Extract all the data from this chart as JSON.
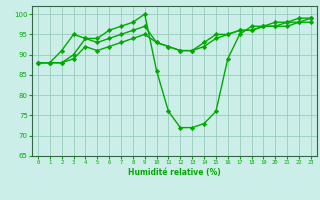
{
  "xlabel": "Humidité relative (%)",
  "background_color": "#cceee8",
  "grid_color": "#99ccbb",
  "line_color": "#00aa00",
  "marker": "D",
  "markersize": 2.2,
  "linewidth": 1.0,
  "xlim": [
    -0.5,
    23.5
  ],
  "ylim": [
    65,
    102
  ],
  "yticks": [
    65,
    70,
    75,
    80,
    85,
    90,
    95,
    100
  ],
  "xticks": [
    0,
    1,
    2,
    3,
    4,
    5,
    6,
    7,
    8,
    9,
    10,
    11,
    12,
    13,
    14,
    15,
    16,
    17,
    18,
    19,
    20,
    21,
    22,
    23
  ],
  "series": [
    [
      88,
      88,
      91,
      95,
      94,
      94,
      96,
      97,
      98,
      100,
      86,
      76,
      72,
      72,
      73,
      76,
      89,
      95,
      97,
      97,
      98,
      98,
      99,
      99
    ],
    [
      88,
      88,
      88,
      90,
      94,
      93,
      94,
      95,
      96,
      97,
      93,
      92,
      91,
      91,
      92,
      94,
      95,
      96,
      96,
      97,
      97,
      98,
      98,
      99
    ],
    [
      88,
      88,
      88,
      89,
      92,
      91,
      92,
      93,
      94,
      95,
      93,
      92,
      91,
      91,
      93,
      95,
      95,
      96,
      96,
      97,
      97,
      97,
      98,
      98
    ]
  ]
}
